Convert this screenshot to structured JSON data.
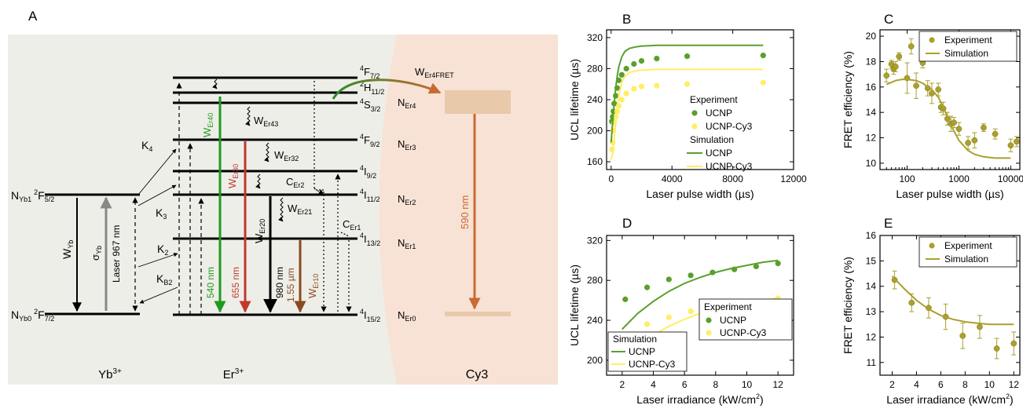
{
  "colors": {
    "green_dark": "#5aa02c",
    "green_light": "#ffee66",
    "olive": "#aaa02c",
    "panel_bg": "#eeeee8",
    "cy3_bg": "#f8e2d6",
    "cy3_level": "#e8c9aa",
    "red": "#c0392b",
    "brown": "#8a4a20",
    "orange": "#c96a2e",
    "green_line": "#2e9a2e"
  },
  "panel_a": {
    "letter": "A",
    "yb_label": "Yb3+",
    "er_label": "Er3+",
    "cy3_label": "Cy3",
    "levels_yb": [
      {
        "n": "NYb1",
        "term": "2F5/2"
      },
      {
        "n": "NYb0",
        "term": "2F7/2"
      }
    ],
    "levels_er": [
      {
        "term": "4F7/2"
      },
      {
        "term": "2H11/2"
      },
      {
        "term": "4S3/2",
        "n": "NEr4"
      },
      {
        "term": "4F9/2",
        "n": "NEr3"
      },
      {
        "term": "4I9/2"
      },
      {
        "term": "4I11/2",
        "n": "NEr2"
      },
      {
        "term": "4I13/2",
        "n": "NEr1"
      },
      {
        "term": "4I15/2",
        "n": "NEr0"
      }
    ],
    "yb_labels": {
      "wyb": "WYb",
      "sigma": "σYb",
      "laser": "Laser  967 nm"
    },
    "k_labels": [
      "K4",
      "K3",
      "K2",
      "KB2"
    ],
    "transitions": [
      {
        "w": "WEr40",
        "nm": "540 nm"
      },
      {
        "w": "WEr30",
        "nm": "655 nm"
      },
      {
        "w": "WEr20",
        "nm": "980 nm"
      },
      {
        "w": "WEr10",
        "nm": "1.55 µm"
      }
    ],
    "nonrad": [
      "WEr43",
      "WEr32",
      "WEr21"
    ],
    "cross": [
      "CEr2",
      "CEr1"
    ],
    "fret": "WEr4FRET",
    "cy3_wavelength": "590 nm"
  },
  "chart_data": [
    {
      "panel": "B",
      "type": "scatter",
      "xlabel": "Laser pulse width (µs)",
      "ylabel": "UCL lifetime (µs)",
      "xlim": [
        -300,
        12000
      ],
      "ylim": [
        150,
        330
      ],
      "xticks": [
        0,
        4000,
        8000,
        12000
      ],
      "yticks": [
        160,
        200,
        240,
        280,
        320
      ],
      "legend": {
        "title1": "Experiment",
        "title2": "Simulation",
        "entries": [
          "UCNP",
          "UCNP-Cy3"
        ]
      },
      "series": [
        {
          "name": "UCNP",
          "kind": "points",
          "x": [
            50,
            100,
            150,
            200,
            300,
            400,
            500,
            700,
            1000,
            1500,
            2000,
            3000,
            5000,
            10000
          ],
          "y": [
            212,
            218,
            225,
            235,
            245,
            255,
            265,
            272,
            280,
            286,
            290,
            293,
            296,
            297
          ]
        },
        {
          "name": "UCNP-Cy3",
          "kind": "points",
          "x": [
            50,
            100,
            150,
            200,
            300,
            400,
            500,
            700,
            1000,
            1500,
            2000,
            3000,
            5000,
            10000
          ],
          "y": [
            176,
            185,
            200,
            210,
            218,
            225,
            232,
            240,
            248,
            254,
            257,
            258,
            260,
            262
          ]
        },
        {
          "name": "UCNP",
          "kind": "line",
          "x": [
            0,
            100,
            200,
            300,
            400,
            500,
            700,
            900,
            1200,
            1600,
            2000,
            3000,
            5000,
            10000
          ],
          "y": [
            185,
            210,
            235,
            255,
            270,
            282,
            295,
            302,
            306,
            308,
            309,
            310,
            310,
            310
          ]
        },
        {
          "name": "UCNP-Cy3",
          "kind": "line",
          "x": [
            0,
            100,
            200,
            300,
            400,
            500,
            700,
            900,
            1200,
            1600,
            2000,
            3000,
            5000,
            10000
          ],
          "y": [
            163,
            170,
            190,
            210,
            230,
            245,
            262,
            270,
            275,
            277,
            278,
            279,
            279,
            279
          ]
        }
      ]
    },
    {
      "panel": "C",
      "type": "scatter",
      "xlabel": "Laser pulse width (µs)",
      "ylabel": "FRET efficiency (%)",
      "xscale": "log",
      "xlim": [
        30,
        15000
      ],
      "ylim": [
        9.5,
        20.5
      ],
      "xticks": [
        100,
        1000,
        10000
      ],
      "yticks": [
        10,
        12,
        14,
        16,
        18,
        20
      ],
      "legend": {
        "entries": [
          "Experiment",
          "Simulation"
        ]
      },
      "series": [
        {
          "name": "Experiment",
          "kind": "points",
          "x": [
            40,
            50,
            55,
            60,
            70,
            100,
            120,
            150,
            200,
            250,
            300,
            400,
            450,
            500,
            600,
            700,
            800,
            1000,
            1500,
            2000,
            3000,
            5000,
            10000,
            13000
          ],
          "y": [
            16.9,
            17.8,
            17.4,
            17.6,
            18.4,
            16.7,
            19.2,
            16.1,
            17.9,
            15.9,
            15.5,
            15.8,
            14.4,
            14.3,
            13.5,
            13.1,
            13.2,
            12.7,
            11.6,
            11.8,
            12.8,
            12.3,
            11.4,
            11.7
          ],
          "err": [
            0.5,
            0.3,
            0.4,
            0.4,
            0.3,
            1.2,
            0.6,
            1.0,
            0.4,
            0.6,
            0.8,
            0.5,
            0.4,
            0.5,
            0.5,
            0.6,
            0.4,
            0.5,
            0.5,
            0.6,
            0.3,
            0.4,
            0.5,
            0.4
          ]
        },
        {
          "name": "Simulation",
          "kind": "line",
          "x": [
            40,
            60,
            80,
            100,
            150,
            200,
            300,
            400,
            500,
            700,
            1000,
            1500,
            2000,
            3000,
            5000,
            10000
          ],
          "y": [
            16.2,
            16.5,
            16.6,
            16.6,
            16.5,
            16.3,
            15.8,
            15.2,
            14.4,
            13.0,
            11.8,
            11.0,
            10.7,
            10.5,
            10.4,
            10.4
          ]
        }
      ]
    },
    {
      "panel": "D",
      "type": "scatter",
      "xlabel": "Laser irradiance (kW/cm2)",
      "ylabel": "UCL lifetime (µs)",
      "xlim": [
        1,
        13
      ],
      "ylim": [
        185,
        325
      ],
      "xticks": [
        2,
        4,
        6,
        8,
        10,
        12
      ],
      "yticks": [
        200,
        240,
        280,
        320
      ],
      "legend": {
        "title1": "Experiment",
        "title2": "Simulation",
        "entries": [
          "UCNP",
          "UCNP-Cy3"
        ]
      },
      "series": [
        {
          "name": "UCNP",
          "kind": "points",
          "x": [
            2.2,
            3.6,
            5,
            6.4,
            7.8,
            9.2,
            10.6,
            12
          ],
          "y": [
            261,
            273,
            281,
            285,
            288,
            291,
            294,
            297
          ]
        },
        {
          "name": "UCNP-Cy3",
          "kind": "points",
          "x": [
            2.2,
            3.6,
            5,
            6.4,
            7.8,
            9.2,
            10.6,
            12
          ],
          "y": [
            224,
            236,
            243,
            249,
            252,
            256,
            259,
            262
          ]
        },
        {
          "name": "UCNP",
          "kind": "line",
          "x": [
            2,
            3,
            4,
            5,
            6,
            7,
            8,
            9,
            10,
            11,
            12
          ],
          "y": [
            231,
            247,
            259,
            269,
            277,
            283,
            288,
            292,
            295,
            298,
            300
          ]
        },
        {
          "name": "UCNP-Cy3",
          "kind": "line",
          "x": [
            2,
            3,
            4,
            5,
            6,
            7,
            8,
            9,
            10,
            11,
            12
          ],
          "y": [
            198,
            213,
            225,
            234,
            241,
            247,
            251,
            255,
            258,
            260,
            262
          ]
        }
      ]
    },
    {
      "panel": "E",
      "type": "scatter",
      "xlabel": "Laser irradiance (kW/cm2)",
      "ylabel": "FRET efficiency (%)",
      "xlim": [
        1,
        12.5
      ],
      "ylim": [
        10.5,
        16
      ],
      "xticks": [
        2,
        4,
        6,
        8,
        10,
        12
      ],
      "yticks": [
        11,
        12,
        13,
        14,
        15,
        16
      ],
      "legend": {
        "entries": [
          "Experiment",
          "Simulation"
        ]
      },
      "series": [
        {
          "name": "Experiment",
          "kind": "points",
          "x": [
            2.2,
            3.6,
            5,
            6.4,
            7.8,
            9.2,
            10.6,
            12
          ],
          "y": [
            14.25,
            13.35,
            13.15,
            12.8,
            12.05,
            12.4,
            11.55,
            11.75
          ],
          "err": [
            0.35,
            0.35,
            0.4,
            0.5,
            0.5,
            0.45,
            0.4,
            0.45
          ]
        },
        {
          "name": "Simulation",
          "kind": "line",
          "x": [
            2,
            3,
            4,
            5,
            6,
            7,
            8,
            9,
            10,
            11,
            12
          ],
          "y": [
            14.4,
            13.9,
            13.45,
            13.1,
            12.85,
            12.7,
            12.6,
            12.55,
            12.5,
            12.5,
            12.5
          ]
        }
      ]
    }
  ]
}
